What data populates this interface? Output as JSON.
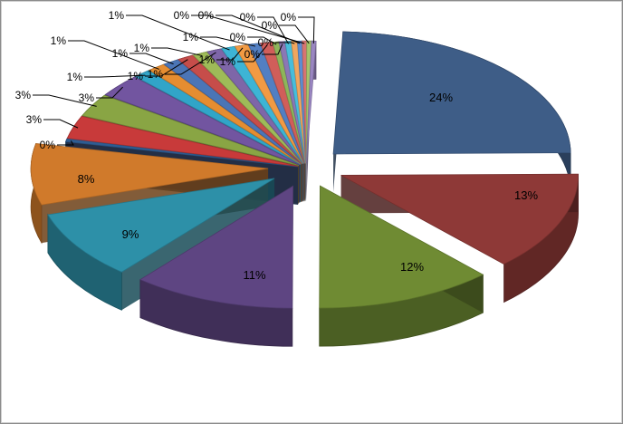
{
  "chart_data": {
    "type": "pie",
    "title": "",
    "variant": "3d-exploded",
    "legend": "none",
    "slices": [
      {
        "label": "24%",
        "value": 24,
        "color": "#3E5D87"
      },
      {
        "label": "13%",
        "value": 13,
        "color": "#8E3937"
      },
      {
        "label": "12%",
        "value": 12,
        "color": "#6F8B33"
      },
      {
        "label": "11%",
        "value": 11,
        "color": "#5E4582"
      },
      {
        "label": "9%",
        "value": 9,
        "color": "#2D90A8"
      },
      {
        "label": "8%",
        "value": 8,
        "color": "#D07A2B"
      },
      {
        "label": "0%",
        "value": 0.4,
        "color": "#2E5D93"
      },
      {
        "label": "3%",
        "value": 3,
        "color": "#C83A3A"
      },
      {
        "label": "3%",
        "value": 3,
        "color": "#89A544"
      },
      {
        "label": "3%",
        "value": 3,
        "color": "#7255A0"
      },
      {
        "label": "1%",
        "value": 1.2,
        "color": "#31A5C8"
      },
      {
        "label": "1%",
        "value": 1.2,
        "color": "#E58D31"
      },
      {
        "label": "1%",
        "value": 1.1,
        "color": "#4B75B6"
      },
      {
        "label": "1%",
        "value": 1.1,
        "color": "#C64D4A"
      },
      {
        "label": "1%",
        "value": 1.0,
        "color": "#9EBB58"
      },
      {
        "label": "1%",
        "value": 1.0,
        "color": "#7E66A8"
      },
      {
        "label": "1%",
        "value": 0.9,
        "color": "#3DB4D5"
      },
      {
        "label": "1%",
        "value": 0.9,
        "color": "#F19A43"
      },
      {
        "label": "1%",
        "value": 0.8,
        "color": "#527FC2"
      },
      {
        "label": "1%",
        "value": 0.8,
        "color": "#D05E5A"
      },
      {
        "label": "0%",
        "value": 0.4,
        "color": "#8EB55A"
      },
      {
        "label": "0%",
        "value": 0.4,
        "color": "#8B77B5"
      },
      {
        "label": "0%",
        "value": 0.4,
        "color": "#48BDDB"
      },
      {
        "label": "0%",
        "value": 0.4,
        "color": "#F1A65E"
      },
      {
        "label": "0%",
        "value": 0.3,
        "color": "#5C8DD2"
      },
      {
        "label": "0%",
        "value": 0.3,
        "color": "#D77472"
      },
      {
        "label": "0%",
        "value": 0.3,
        "color": "#A5C46B"
      },
      {
        "label": "0%",
        "value": 0.3,
        "color": "#9A86C2"
      }
    ]
  }
}
